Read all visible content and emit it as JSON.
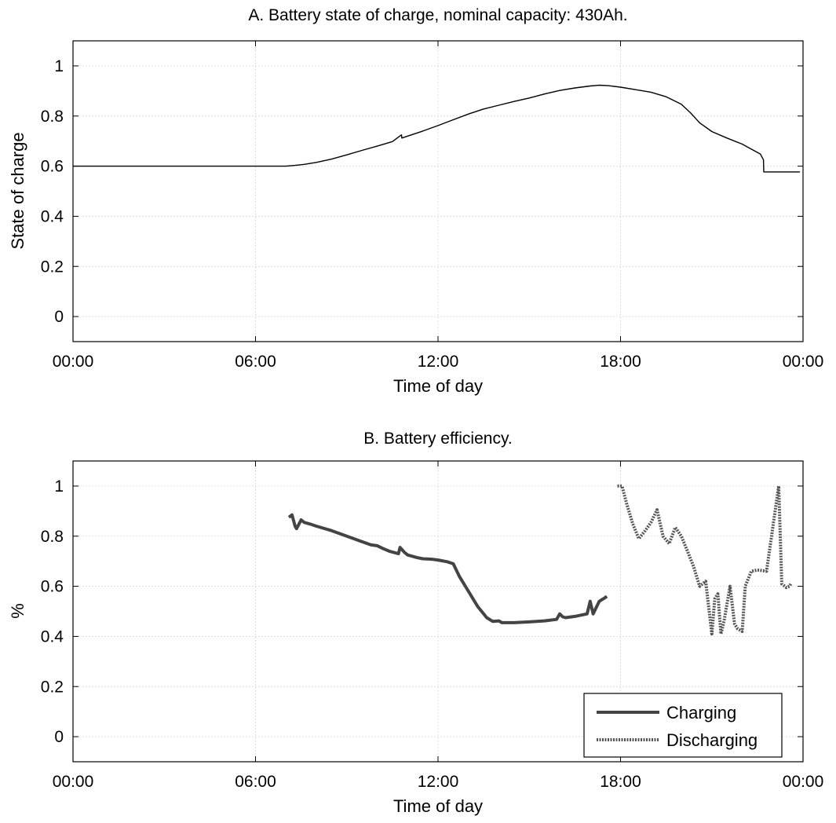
{
  "chart_data": [
    {
      "type": "line",
      "title": "A. Battery state of charge, nominal capacity: 430Ah.",
      "xlabel": "Time of day",
      "ylabel": "State of charge",
      "xlim": [
        0,
        24
      ],
      "ylim": [
        -0.1,
        1.1
      ],
      "xticks": [
        0,
        6,
        12,
        18,
        24
      ],
      "xtick_labels": [
        "00:00",
        "06:00",
        "12:00",
        "18:00",
        "00:00"
      ],
      "yticks": [
        0,
        0.2,
        0.4,
        0.6,
        0.8,
        1
      ],
      "ytick_labels": [
        "0",
        "0.2",
        "0.4",
        "0.6",
        "0.8",
        "1"
      ],
      "grid": true,
      "series": [
        {
          "color": "#000000",
          "x": [
            0,
            6.0,
            7.0,
            7.3,
            7.6,
            8.0,
            8.5,
            9.0,
            9.5,
            10.0,
            10.5,
            10.8,
            10.81,
            11.0,
            11.5,
            12.0,
            12.5,
            13.0,
            13.5,
            14.0,
            14.5,
            15.0,
            15.5,
            16.0,
            16.5,
            17.0,
            17.3,
            17.6,
            18.0,
            18.5,
            19.0,
            19.5,
            20.0,
            20.3,
            20.6,
            21.0,
            21.5,
            22.0,
            22.3,
            22.6,
            22.7,
            22.71,
            23.0,
            23.5,
            23.9
          ],
          "y": [
            0.6,
            0.6,
            0.6,
            0.603,
            0.607,
            0.615,
            0.628,
            0.645,
            0.663,
            0.68,
            0.698,
            0.725,
            0.712,
            0.72,
            0.74,
            0.762,
            0.785,
            0.808,
            0.828,
            0.843,
            0.858,
            0.872,
            0.888,
            0.902,
            0.912,
            0.92,
            0.923,
            0.921,
            0.915,
            0.905,
            0.895,
            0.877,
            0.847,
            0.813,
            0.773,
            0.738,
            0.712,
            0.688,
            0.668,
            0.648,
            0.625,
            0.577,
            0.577,
            0.577,
            0.577
          ]
        }
      ]
    },
    {
      "type": "line",
      "title": "B. Battery efficiency.",
      "xlabel": "Time of day",
      "ylabel": "%",
      "xlim": [
        0,
        24
      ],
      "ylim": [
        -0.1,
        1.1
      ],
      "xticks": [
        0,
        6,
        12,
        18,
        24
      ],
      "xtick_labels": [
        "00:00",
        "06:00",
        "12:00",
        "18:00",
        "00:00"
      ],
      "yticks": [
        0,
        0.2,
        0.4,
        0.6,
        0.8,
        1
      ],
      "ytick_labels": [
        "0",
        "0.2",
        "0.4",
        "0.6",
        "0.8",
        "1"
      ],
      "grid": true,
      "legend": {
        "placement": "bottom-right"
      },
      "series": [
        {
          "name": "Charging",
          "style": "solid",
          "color": "#444444",
          "x": [
            7.1,
            7.2,
            7.3,
            7.35,
            7.5,
            7.6,
            7.8,
            8.0,
            8.5,
            9.0,
            9.5,
            9.8,
            10.0,
            10.2,
            10.4,
            10.7,
            10.75,
            10.9,
            11.0,
            11.3,
            11.5,
            11.8,
            12.0,
            12.3,
            12.5,
            12.7,
            13.0,
            13.3,
            13.6,
            13.8,
            14.0,
            14.1,
            14.5,
            15.0,
            15.5,
            15.9,
            16.0,
            16.1,
            16.2,
            16.5,
            16.9,
            17.0,
            17.1,
            17.3,
            17.5,
            17.55
          ],
          "y": [
            0.875,
            0.885,
            0.84,
            0.83,
            0.865,
            0.855,
            0.848,
            0.84,
            0.822,
            0.8,
            0.778,
            0.765,
            0.762,
            0.75,
            0.74,
            0.73,
            0.755,
            0.735,
            0.725,
            0.715,
            0.71,
            0.708,
            0.705,
            0.698,
            0.69,
            0.64,
            0.58,
            0.52,
            0.475,
            0.46,
            0.462,
            0.455,
            0.455,
            0.458,
            0.462,
            0.468,
            0.49,
            0.478,
            0.475,
            0.48,
            0.49,
            0.54,
            0.49,
            0.54,
            0.555,
            0.56
          ]
        },
        {
          "name": "Discharging",
          "style": "dotted",
          "color": "#555555",
          "x": [
            17.9,
            18.05,
            18.2,
            18.4,
            18.6,
            18.8,
            19.0,
            19.2,
            19.4,
            19.6,
            19.8,
            20.0,
            20.2,
            20.4,
            20.6,
            20.8,
            21.0,
            21.1,
            21.2,
            21.3,
            21.4,
            21.6,
            21.75,
            21.85,
            22.0,
            22.1,
            22.3,
            22.5,
            22.8,
            23.2,
            23.3,
            23.45,
            23.55,
            23.6
          ],
          "y": [
            1.0,
            1.0,
            0.93,
            0.85,
            0.79,
            0.82,
            0.855,
            0.905,
            0.8,
            0.77,
            0.835,
            0.8,
            0.74,
            0.68,
            0.6,
            0.62,
            0.41,
            0.55,
            0.57,
            0.41,
            0.46,
            0.6,
            0.45,
            0.43,
            0.42,
            0.6,
            0.66,
            0.665,
            0.66,
            1.0,
            0.61,
            0.595,
            0.6,
            0.61
          ]
        }
      ]
    }
  ]
}
